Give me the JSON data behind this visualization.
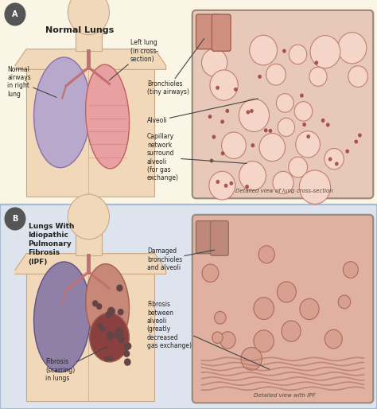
{
  "bg_color": "#faf5e4",
  "panel_b_bg": "#dde4ed",
  "title_a": "Normal Lungs",
  "title_b": "Lungs With\nIdiopathic\nPulmonary\nFibrosis\n(IPF)",
  "caption_a": "Detailed view of lung cross-section",
  "caption_b": "Detailed view with IPF",
  "figsize": [
    4.74,
    5.14
  ],
  "dpi": 100,
  "skin_fill": "#f0d8b8",
  "skin_edge": "#c8a888",
  "lung_r_a_fill": "#b8a8cc",
  "lung_r_a_edge": "#8870aa",
  "lung_l_a_fill": "#e8a0a0",
  "lung_l_a_edge": "#c06060",
  "lung_r_b_fill": "#9080a8",
  "lung_r_b_edge": "#605080",
  "lung_l_b_fill": "#c88878",
  "lung_l_b_edge": "#a06050",
  "trachea_color": "#c07070",
  "det_box_a_fill": "#e8c8b8",
  "det_box_a_edge": "#998878",
  "det_box_b_fill": "#e0b0a0",
  "det_box_b_edge": "#998878",
  "alveoli_a_fill": "#f5d5c8",
  "alveoli_a_edge": "#c08070",
  "alveoli_b_fill": "#d8a090",
  "alveoli_b_edge": "#b06858",
  "bronch_a_fill": "#d09080",
  "bronch_a_edge": "#a06050",
  "bronch_b_fill": "#c08878",
  "bronch_b_edge": "#907060",
  "fibrosis_spot": "#664444",
  "fibrosis_line": "#b87868",
  "caption_color": "#554433",
  "label_bg": "#555555",
  "text_color": "#222222",
  "arrow_color": "#444444",
  "divider_color": "#aabbd0"
}
